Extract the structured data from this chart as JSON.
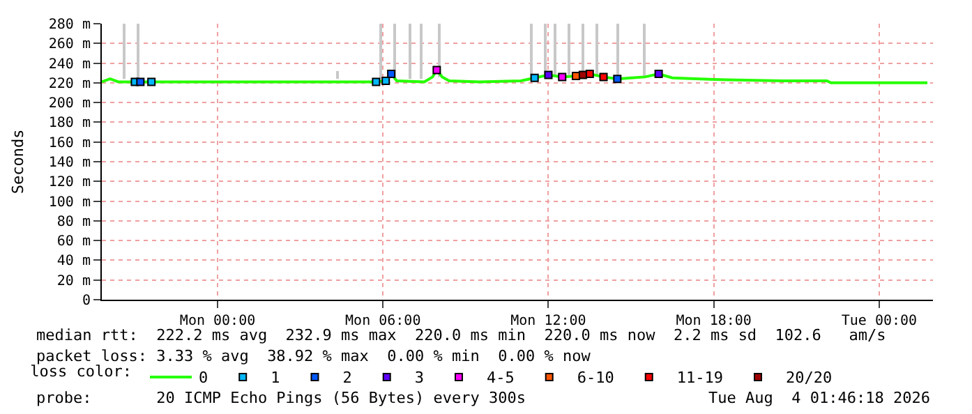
{
  "chart_data": {
    "type": "line",
    "ylabel": "Seconds",
    "xlim": [
      "2026-08-02T19:48",
      "2026-08-04T01:57"
    ],
    "xticks": [
      {
        "value": "2026-08-03T00:00",
        "label": "Mon 00:00"
      },
      {
        "value": "2026-08-03T06:00",
        "label": "Mon 06:00"
      },
      {
        "value": "2026-08-03T12:00",
        "label": "Mon 12:00"
      },
      {
        "value": "2026-08-03T18:00",
        "label": "Mon 18:00"
      },
      {
        "value": "2026-08-04T00:00",
        "label": "Tue 00:00"
      }
    ],
    "ylim": [
      0,
      280
    ],
    "yticks": [
      0,
      {
        "value": 20,
        "label": "20 m"
      },
      {
        "value": 40,
        "label": "40 m"
      },
      {
        "value": 60,
        "label": "60 m"
      },
      {
        "value": 80,
        "label": "80 m"
      },
      {
        "value": 100,
        "label": "100 m"
      },
      {
        "value": 120,
        "label": "120 m"
      },
      {
        "value": 140,
        "label": "140 m"
      },
      {
        "value": 160,
        "label": "160 m"
      },
      {
        "value": 180,
        "label": "180 m"
      },
      {
        "value": 200,
        "label": "200 m"
      },
      {
        "value": 220,
        "label": "220 m"
      },
      {
        "value": 240,
        "label": "240 m"
      },
      {
        "value": 260,
        "label": "260 m"
      },
      {
        "value": 280,
        "label": "280 m"
      }
    ],
    "grid": true,
    "legend": "bottom",
    "legend_title": "loss color:",
    "annotations": [
      "median rtt:  222.2 ms avg  232.9 ms max  220.0 ms min  220.0 ms now  2.2 ms sd  102.6   am/s",
      "packet loss: 3.33 % avg  38.92 % max  0.00 % min  0.00 % now",
      "probe:       20 ICMP Echo Pings (56 Bytes) every 300s",
      "Tue Aug  4 01:46:18 2026"
    ],
    "series": [
      {
        "type": "bar",
        "color": "#c8c8c8",
        "x": [
          "2026-08-02T20:36",
          "2026-08-02T21:06",
          "2026-08-03T04:21",
          "2026-08-03T05:54",
          "2026-08-03T06:24",
          "2026-08-03T07:00",
          "2026-08-03T07:24",
          "2026-08-03T08:03",
          "2026-08-03T11:24",
          "2026-08-03T11:54",
          "2026-08-03T12:15",
          "2026-08-03T12:45",
          "2026-08-03T13:15",
          "2026-08-03T13:45",
          "2026-08-03T14:30",
          "2026-08-03T15:30"
        ],
        "base": [
          224,
          224,
          224,
          224,
          224,
          224,
          224,
          226,
          226,
          226,
          228,
          228,
          228,
          228,
          226,
          226
        ],
        "values": [
          56,
          56,
          8,
          56,
          56,
          56,
          56,
          54,
          54,
          54,
          52,
          52,
          52,
          52,
          54,
          54
        ]
      },
      {
        "name": "0",
        "color": "#26ff00",
        "x": [
          "2026-08-02T19:48",
          "2026-08-02T20:06",
          "2026-08-02T20:24",
          "2026-08-03T00:00",
          "2026-08-03T04:21",
          "2026-08-03T05:36",
          "2026-08-03T06:06",
          "2026-08-03T06:18",
          "2026-08-03T06:30",
          "2026-08-03T07:30",
          "2026-08-03T07:48",
          "2026-08-03T07:57",
          "2026-08-03T08:09",
          "2026-08-03T08:24",
          "2026-08-03T09:30",
          "2026-08-03T11:00",
          "2026-08-03T11:30",
          "2026-08-03T12:00",
          "2026-08-03T12:30",
          "2026-08-03T13:00",
          "2026-08-03T13:30",
          "2026-08-03T14:00",
          "2026-08-03T14:30",
          "2026-08-03T15:00",
          "2026-08-03T15:30",
          "2026-08-03T16:00",
          "2026-08-03T16:30",
          "2026-08-03T17:30",
          "2026-08-03T18:30",
          "2026-08-03T20:30",
          "2026-08-03T22:06",
          "2026-08-03T22:15",
          "2026-08-04T01:45"
        ],
        "values": [
          221,
          224,
          221,
          221,
          221,
          221,
          222,
          229,
          222,
          221,
          226,
          233,
          226,
          222,
          221,
          222,
          225,
          228,
          226,
          227,
          229,
          226,
          224,
          225,
          226,
          229,
          225,
          224,
          223,
          222,
          222,
          220,
          220
        ]
      },
      {
        "name": "1",
        "type": "scatter",
        "color": "#00b8ff",
        "x": [
          "2026-08-02T21:00",
          "2026-08-02T21:36",
          "2026-08-03T05:45",
          "2026-08-03T06:06",
          "2026-08-03T11:30"
        ],
        "values": [
          221,
          221,
          221,
          222,
          225
        ]
      },
      {
        "name": "2",
        "type": "scatter",
        "color": "#0059ff",
        "x": [
          "2026-08-02T21:12",
          "2026-08-03T06:18",
          "2026-08-03T14:30"
        ],
        "values": [
          221,
          229,
          224
        ]
      },
      {
        "name": "3",
        "type": "scatter",
        "color": "#5e00ff",
        "x": [
          "2026-08-03T12:00",
          "2026-08-03T16:00"
        ],
        "values": [
          228,
          229
        ]
      },
      {
        "name": "4-5",
        "type": "scatter",
        "color": "#ff00ff",
        "x": [
          "2026-08-03T07:57",
          "2026-08-03T12:30"
        ],
        "values": [
          233,
          226
        ]
      },
      {
        "name": "6-10",
        "type": "scatter",
        "color": "#ff5500",
        "x": [
          "2026-08-03T13:00"
        ],
        "values": [
          227
        ]
      },
      {
        "name": "11-19",
        "type": "scatter",
        "color": "#ff0000",
        "x": [
          "2026-08-03T13:30",
          "2026-08-03T14:00"
        ],
        "values": [
          229,
          226
        ]
      },
      {
        "name": "20/20",
        "type": "scatter",
        "color": "#a10000",
        "x": [
          "2026-08-03T13:15"
        ],
        "values": [
          228
        ]
      }
    ]
  }
}
